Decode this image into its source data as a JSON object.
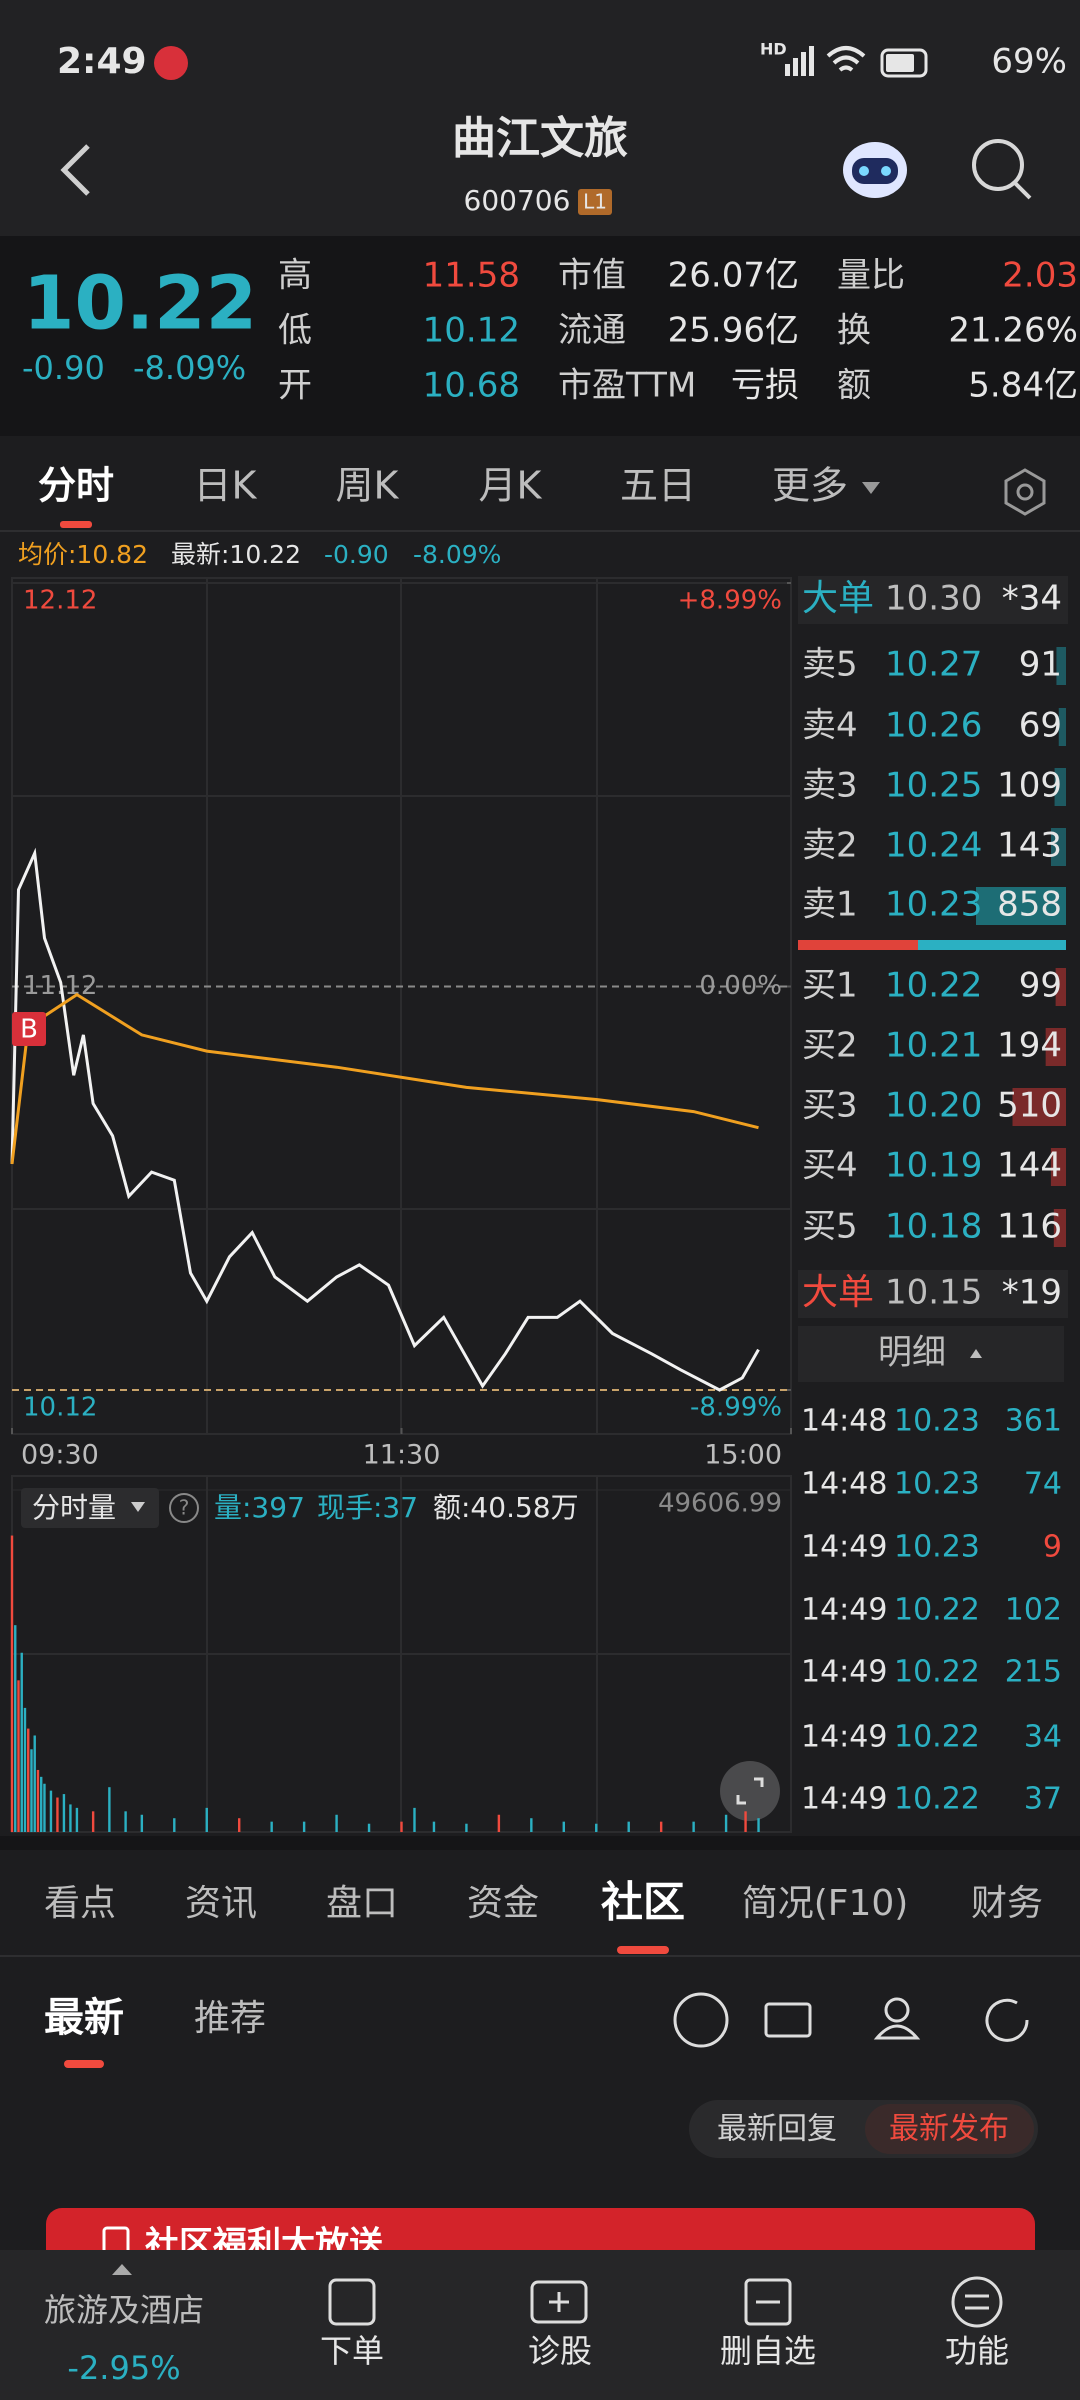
{
  "status_bar": {
    "time": "2:49",
    "network": "HD",
    "battery": "69%"
  },
  "header": {
    "title": "曲江文旅",
    "code": "600706",
    "badge": "L1"
  },
  "quote": {
    "price": "10.22",
    "change": "-0.90",
    "change_pct": "-8.09%",
    "stats": [
      {
        "label": "高",
        "value": "11.58",
        "color": "#f04a3e"
      },
      {
        "label": "市值",
        "value": "26.07亿",
        "color": "#e6e6e6"
      },
      {
        "label": "量比",
        "value": "2.03",
        "color": "#f04a3e"
      },
      {
        "label": "低",
        "value": "10.12",
        "color": "#2bb0c2"
      },
      {
        "label": "流通",
        "value": "25.96亿",
        "color": "#e6e6e6"
      },
      {
        "label": "换",
        "value": "21.26%",
        "color": "#e6e6e6"
      },
      {
        "label": "开",
        "value": "10.68",
        "color": "#2bb0c2"
      },
      {
        "label": "市盈TTM",
        "value": "亏损",
        "color": "#e6e6e6"
      },
      {
        "label": "额",
        "value": "5.84亿",
        "color": "#e6e6e6"
      }
    ]
  },
  "tabs": {
    "items": [
      "分时",
      "日K",
      "周K",
      "月K",
      "五日",
      "更多"
    ],
    "active": 0
  },
  "info_bar": {
    "avg": "均价:10.82",
    "latest": "最新:10.22",
    "change": "-0.90",
    "change_pct": "-8.09%"
  },
  "chart_data": [
    {
      "type": "line",
      "buy_marker": "B",
      "xlim": [
        0,
        240
      ],
      "xticks": [
        {
          "value": 0,
          "label": "09:30"
        },
        {
          "value": 120,
          "label": "11:30"
        },
        {
          "value": 240,
          "label": "15:00"
        }
      ],
      "ylim": [
        10.12,
        12.12
      ],
      "yticks": [
        12.12,
        11.12,
        10.12
      ],
      "y2lim": [
        -8.99,
        8.99
      ],
      "y2ticks": [
        {
          "value": 8.99,
          "label": "+8.99%"
        },
        {
          "value": 0,
          "label": "0.00%"
        },
        {
          "value": -8.99,
          "label": "-8.99%"
        }
      ],
      "series": [
        {
          "color": "#f2f2f2",
          "x": [
            0,
            2,
            7,
            10,
            15,
            19,
            22,
            25,
            31,
            36,
            43,
            50,
            55,
            60,
            67,
            74,
            81,
            91,
            100,
            107,
            116,
            124,
            133,
            145,
            152,
            159,
            168,
            175,
            185,
            197,
            206,
            218,
            225,
            230
          ],
          "values": [
            10.68,
            11.36,
            11.45,
            11.24,
            11.13,
            10.9,
            11.0,
            10.83,
            10.75,
            10.6,
            10.66,
            10.64,
            10.41,
            10.34,
            10.45,
            10.51,
            10.4,
            10.34,
            10.4,
            10.43,
            10.38,
            10.23,
            10.3,
            10.13,
            10.21,
            10.3,
            10.3,
            10.34,
            10.26,
            10.21,
            10.17,
            10.12,
            10.15,
            10.22
          ]
        },
        {
          "color": "#f0a020",
          "x": [
            0,
            5,
            20,
            40,
            60,
            100,
            140,
            180,
            210,
            230
          ],
          "values": [
            10.68,
            11.02,
            11.1,
            11.0,
            10.96,
            10.92,
            10.87,
            10.84,
            10.81,
            10.77
          ]
        }
      ]
    },
    {
      "type": "bar",
      "title": "分时量",
      "stats": [
        {
          "text": "量:397",
          "color": "#2bb0c2"
        },
        {
          "text": "现手:37",
          "color": "#2bb0c2"
        },
        {
          "text": "额:40.58万",
          "color": "#e6e6e6"
        }
      ],
      "xlim": [
        0,
        240
      ],
      "ylim": [
        0,
        49606.99
      ],
      "yticks": [
        49606.99
      ],
      "x": [
        0,
        1,
        2,
        3,
        4,
        5,
        6,
        7,
        8,
        9,
        10,
        12,
        14,
        16,
        18,
        20,
        25,
        30,
        35,
        40,
        50,
        60,
        70,
        80,
        90,
        100,
        110,
        120,
        124,
        130,
        140,
        150,
        160,
        170,
        180,
        190,
        200,
        210,
        220,
        226,
        230
      ],
      "values": [
        43000,
        30000,
        22000,
        26000,
        18000,
        15000,
        12000,
        14000,
        9000,
        8000,
        7000,
        6000,
        5000,
        5500,
        4000,
        3500,
        3000,
        6500,
        3000,
        2500,
        2000,
        3500,
        2000,
        1500,
        1500,
        2500,
        1200,
        1500,
        3500,
        1500,
        1200,
        2500,
        2000,
        1500,
        1200,
        1500,
        1500,
        1500,
        2500,
        3000,
        2000
      ],
      "colors": [
        "#f04a3e",
        "#2bb0c2",
        "#f04a3e",
        "#2bb0c2",
        "#2bb0c2",
        "#f04a3e",
        "#2bb0c2",
        "#2bb0c2",
        "#f04a3e",
        "#2bb0c2",
        "#2bb0c2",
        "#2bb0c2",
        "#f04a3e",
        "#2bb0c2",
        "#2bb0c2",
        "#2bb0c2",
        "#f04a3e",
        "#2bb0c2",
        "#2bb0c2",
        "#2bb0c2",
        "#2bb0c2",
        "#2bb0c2",
        "#f04a3e",
        "#2bb0c2",
        "#2bb0c2",
        "#2bb0c2",
        "#2bb0c2",
        "#f04a3e",
        "#2bb0c2",
        "#2bb0c2",
        "#2bb0c2",
        "#f04a3e",
        "#2bb0c2",
        "#2bb0c2",
        "#2bb0c2",
        "#2bb0c2",
        "#f04a3e",
        "#2bb0c2",
        "#2bb0c2",
        "#f04a3e",
        "#2bb0c2"
      ]
    }
  ],
  "order_book": {
    "big_sell": {
      "label": "大单",
      "price": "10.30",
      "volume": "*34"
    },
    "asks": [
      {
        "label": "卖5",
        "price": "10.27",
        "volume": 91
      },
      {
        "label": "卖4",
        "price": "10.26",
        "volume": 69
      },
      {
        "label": "卖3",
        "price": "10.25",
        "volume": 109
      },
      {
        "label": "卖2",
        "price": "10.24",
        "volume": 143
      },
      {
        "label": "卖1",
        "price": "10.23",
        "volume": 858
      }
    ],
    "bids": [
      {
        "label": "买1",
        "price": "10.22",
        "volume": 99
      },
      {
        "label": "买2",
        "price": "10.21",
        "volume": 194
      },
      {
        "label": "买3",
        "price": "10.20",
        "volume": 510
      },
      {
        "label": "买4",
        "price": "10.19",
        "volume": 144
      },
      {
        "label": "买5",
        "price": "10.18",
        "volume": 116
      }
    ],
    "big_buy": {
      "label": "大单",
      "price": "10.15",
      "volume": "*19"
    },
    "trades_header": "明细",
    "trades": [
      {
        "time": "14:48",
        "price": "10.23",
        "volume": 361,
        "color": "#2bb0c2"
      },
      {
        "time": "14:48",
        "price": "10.23",
        "volume": 74,
        "color": "#2bb0c2"
      },
      {
        "time": "14:49",
        "price": "10.23",
        "volume": 9,
        "color": "#f04a3e"
      },
      {
        "time": "14:49",
        "price": "10.22",
        "volume": 102,
        "color": "#2bb0c2"
      },
      {
        "time": "14:49",
        "price": "10.22",
        "volume": 215,
        "color": "#2bb0c2"
      },
      {
        "time": "14:49",
        "price": "10.22",
        "volume": 34,
        "color": "#2bb0c2"
      },
      {
        "time": "14:49",
        "price": "10.22",
        "volume": 37,
        "color": "#2bb0c2"
      }
    ]
  },
  "bottom_tabs": {
    "items": [
      "看点",
      "资讯",
      "盘口",
      "资金",
      "社区",
      "简况(F10)",
      "财务"
    ],
    "active": 4
  },
  "sub_tabs": {
    "items": [
      "最新",
      "推荐"
    ],
    "active": 0
  },
  "sort_buttons": {
    "items": [
      "最新回复",
      "最新发布"
    ],
    "active": 1
  },
  "banner": "社区福利大放送",
  "nav": {
    "sector": {
      "name": "旅游及酒店",
      "change": "-2.95%"
    },
    "items": [
      "下单",
      "诊股",
      "删自选",
      "功能"
    ]
  }
}
